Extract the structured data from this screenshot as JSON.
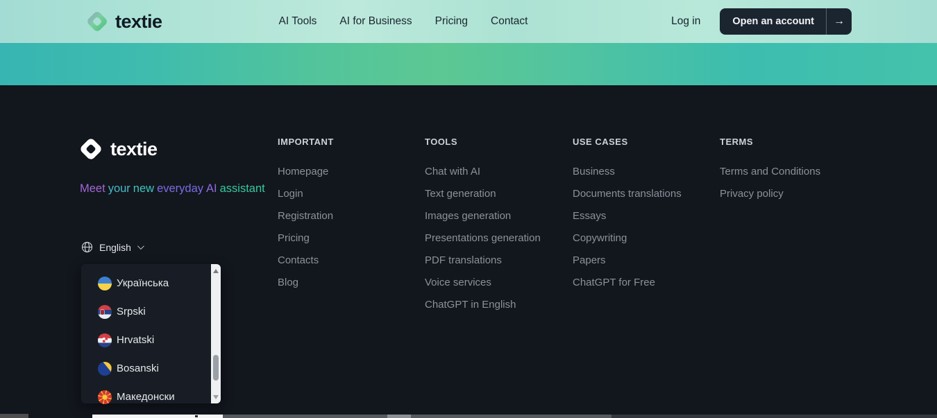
{
  "navbar": {
    "brand": "textie",
    "links": [
      "AI Tools",
      "AI for Business",
      "Pricing",
      "Contact"
    ],
    "login_label": "Log in",
    "cta_label": "Open an account",
    "cta_arrow": "→"
  },
  "footer": {
    "brand": "textie",
    "tagline_segments": [
      {
        "text": "Meet",
        "color": "#a168d4"
      },
      {
        "text": "your",
        "color": "#49bac6"
      },
      {
        "text": "new",
        "color": "#3ec5bb"
      },
      {
        "text": "everyday",
        "color": "#7b6ce3"
      },
      {
        "text": "AI",
        "color": "#8f6ce0"
      },
      {
        "text": "assistant",
        "color": "#36c9a1"
      }
    ],
    "language": {
      "selected": "English",
      "options": [
        {
          "label": "Українська",
          "code": "ua"
        },
        {
          "label": "Srpski",
          "code": "rs"
        },
        {
          "label": "Hrvatski",
          "code": "hr"
        },
        {
          "label": "Bosanski",
          "code": "ba"
        },
        {
          "label": "Македонски",
          "code": "mk"
        }
      ]
    },
    "columns": [
      {
        "title": "IMPORTANT",
        "links": [
          "Homepage",
          "Login",
          "Registration",
          "Pricing",
          "Contacts",
          "Blog"
        ]
      },
      {
        "title": "TOOLS",
        "links": [
          "Chat with AI",
          "Text generation",
          "Images generation",
          "Presentations generation",
          "PDF translations",
          "Voice services",
          "ChatGPT in English"
        ]
      },
      {
        "title": "USE CASES",
        "links": [
          "Business",
          "Documents translations",
          "Essays",
          "Copywriting",
          "Papers",
          "ChatGPT for Free"
        ]
      },
      {
        "title": "TERMS",
        "links": [
          "Terms and Conditions",
          "Privacy policy"
        ]
      }
    ]
  },
  "colors": {
    "navbar_teal_light": "#aee3d6",
    "hero_teal": "#3fbfae",
    "footer_bg": "#12161d",
    "dropdown_bg": "#181d25",
    "cta_bg": "#1b2530",
    "link_gray": "#8c929a",
    "logo_purple": "#ab8be0",
    "logo_green": "#3fbf72"
  }
}
